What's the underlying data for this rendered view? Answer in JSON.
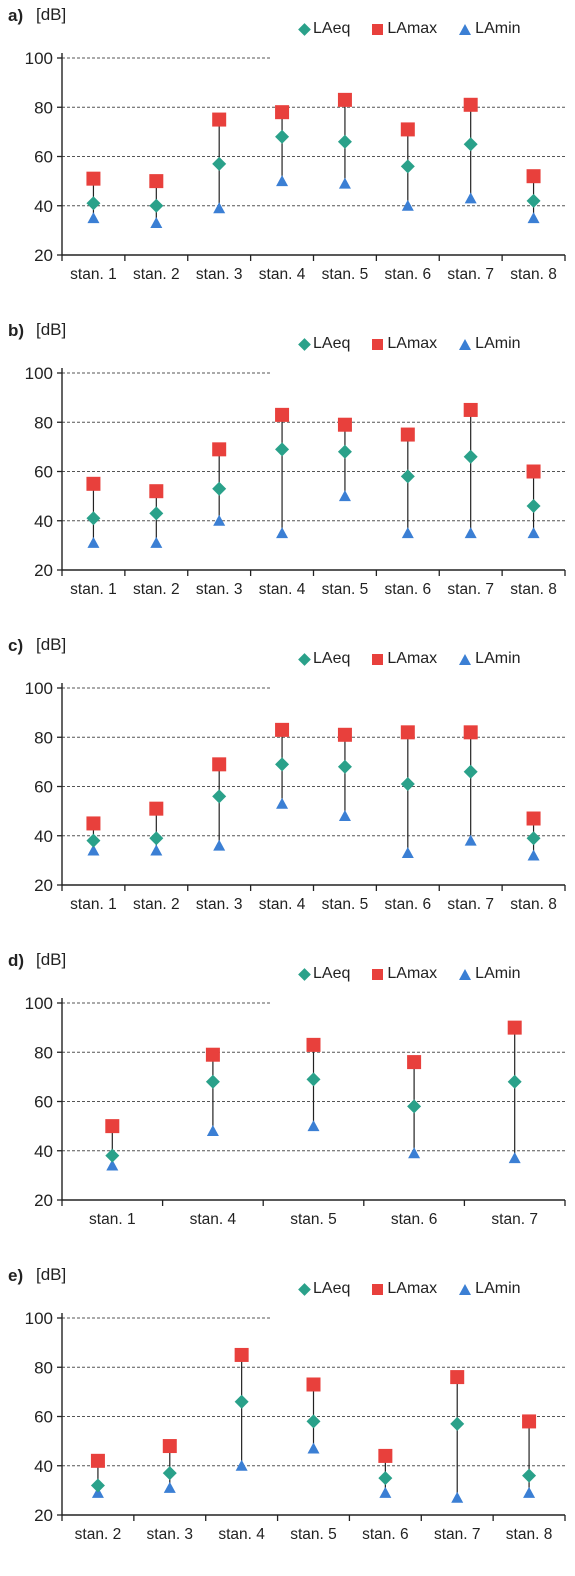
{
  "colors": {
    "laeq": "#2aa18a",
    "lamax": "#e8403c",
    "lamin": "#3b7fd4",
    "grid": "#555555"
  },
  "legend": {
    "laeq": "LAeq",
    "lamax": "LAmax",
    "lamin": "LAmin"
  },
  "chart_data": [
    {
      "type": "scatter",
      "panel": "a)",
      "ylabel": "[dB]",
      "ylim": [
        20,
        100
      ],
      "yticks": [
        "20",
        "40",
        "60",
        "80",
        "100"
      ],
      "grid": true,
      "legend_position": "top-right",
      "categories": [
        "stan. 1",
        "stan. 2",
        "stan. 3",
        "stan. 4",
        "stan. 5",
        "stan. 6",
        "stan. 7",
        "stan. 8"
      ],
      "series": [
        {
          "name": "LAeq",
          "values": [
            41,
            40,
            57,
            68,
            66,
            56,
            65,
            42
          ]
        },
        {
          "name": "LAmax",
          "values": [
            51,
            50,
            75,
            78,
            83,
            71,
            81,
            52
          ]
        },
        {
          "name": "LAmin",
          "values": [
            35,
            33,
            39,
            50,
            49,
            40,
            43,
            35
          ]
        }
      ]
    },
    {
      "type": "scatter",
      "panel": "b)",
      "ylabel": "[dB]",
      "ylim": [
        20,
        100
      ],
      "yticks": [
        "20",
        "40",
        "60",
        "80",
        "100"
      ],
      "grid": true,
      "legend_position": "top-right",
      "categories": [
        "stan. 1",
        "stan. 2",
        "stan. 3",
        "stan. 4",
        "stan. 5",
        "stan. 6",
        "stan. 7",
        "stan. 8"
      ],
      "series": [
        {
          "name": "LAeq",
          "values": [
            41,
            43,
            53,
            69,
            68,
            58,
            66,
            46
          ]
        },
        {
          "name": "LAmax",
          "values": [
            55,
            52,
            69,
            83,
            79,
            75,
            85,
            60
          ]
        },
        {
          "name": "LAmin",
          "values": [
            31,
            31,
            40,
            35,
            50,
            35,
            35,
            35
          ]
        }
      ]
    },
    {
      "type": "scatter",
      "panel": "c)",
      "ylabel": "[dB]",
      "ylim": [
        20,
        100
      ],
      "yticks": [
        "20",
        "40",
        "60",
        "80",
        "100"
      ],
      "grid": true,
      "legend_position": "top-right",
      "categories": [
        "stan. 1",
        "stan. 2",
        "stan. 3",
        "stan. 4",
        "stan. 5",
        "stan. 6",
        "stan. 7",
        "stan. 8"
      ],
      "series": [
        {
          "name": "LAeq",
          "values": [
            38,
            39,
            56,
            69,
            68,
            61,
            66,
            39
          ]
        },
        {
          "name": "LAmax",
          "values": [
            45,
            51,
            69,
            83,
            81,
            82,
            82,
            47
          ]
        },
        {
          "name": "LAmin",
          "values": [
            34,
            34,
            36,
            53,
            48,
            33,
            38,
            32
          ]
        }
      ]
    },
    {
      "type": "scatter",
      "panel": "d)",
      "ylabel": "[dB]",
      "ylim": [
        20,
        100
      ],
      "yticks": [
        "20",
        "40",
        "60",
        "80",
        "100"
      ],
      "grid": true,
      "legend_position": "top-right",
      "categories": [
        "stan. 1",
        "stan. 4",
        "stan. 5",
        "stan. 6",
        "stan. 7"
      ],
      "series": [
        {
          "name": "LAeq",
          "values": [
            38,
            68,
            69,
            58,
            68
          ]
        },
        {
          "name": "LAmax",
          "values": [
            50,
            79,
            83,
            76,
            90
          ]
        },
        {
          "name": "LAmin",
          "values": [
            34,
            48,
            50,
            39,
            37
          ]
        }
      ]
    },
    {
      "type": "scatter",
      "panel": "e)",
      "ylabel": "[dB]",
      "ylim": [
        20,
        100
      ],
      "yticks": [
        "20",
        "40",
        "60",
        "80",
        "100"
      ],
      "grid": true,
      "legend_position": "top-right",
      "categories": [
        "stan. 2",
        "stan. 3",
        "stan. 4",
        "stan. 5",
        "stan. 6",
        "stan. 7",
        "stan. 8"
      ],
      "series": [
        {
          "name": "LAeq",
          "values": [
            32,
            37,
            66,
            58,
            35,
            57,
            36
          ]
        },
        {
          "name": "LAmax",
          "values": [
            42,
            48,
            85,
            73,
            44,
            76,
            58
          ]
        },
        {
          "name": "LAmin",
          "values": [
            29,
            31,
            40,
            47,
            29,
            27,
            29
          ]
        }
      ]
    }
  ]
}
